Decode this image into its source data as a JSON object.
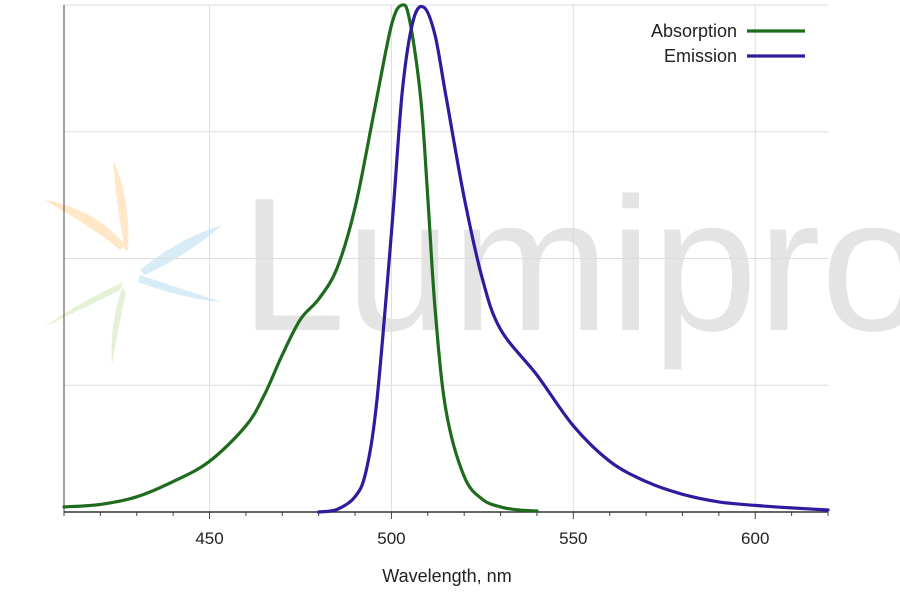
{
  "chart_data": {
    "type": "line",
    "xlabel": "Wavelength, nm",
    "xlim": [
      410,
      620
    ],
    "ylim": [
      0,
      1
    ],
    "x_ticks": [
      450,
      500,
      550,
      600
    ],
    "y_grid": [
      0.25,
      0.5,
      0.75,
      1.0
    ],
    "grid": true,
    "legend_position": "top-right",
    "watermark": {
      "text": "Lumiprobe"
    },
    "series": [
      {
        "name": "Absorption",
        "color": "#1e6b1e",
        "x": [
          410,
          420,
          430,
          440,
          450,
          460,
          465,
          470,
          475,
          480,
          485,
          490,
          495,
          500,
          503,
          505,
          508,
          510,
          512,
          515,
          520,
          525,
          530,
          535,
          540
        ],
        "y": [
          0.01,
          0.015,
          0.03,
          0.06,
          0.1,
          0.17,
          0.23,
          0.31,
          0.38,
          0.42,
          0.48,
          0.6,
          0.78,
          0.96,
          1.0,
          0.97,
          0.82,
          0.62,
          0.4,
          0.2,
          0.07,
          0.025,
          0.01,
          0.004,
          0.002
        ]
      },
      {
        "name": "Emission",
        "color": "#2e1b9e",
        "x": [
          480,
          485,
          490,
          493,
          496,
          500,
          503,
          506,
          509,
          512,
          515,
          520,
          525,
          530,
          540,
          550,
          560,
          570,
          580,
          590,
          600,
          610,
          620
        ],
        "y": [
          0.0,
          0.005,
          0.03,
          0.08,
          0.22,
          0.55,
          0.83,
          0.97,
          0.995,
          0.94,
          0.82,
          0.62,
          0.46,
          0.36,
          0.27,
          0.17,
          0.1,
          0.06,
          0.035,
          0.02,
          0.013,
          0.008,
          0.004
        ]
      }
    ]
  }
}
